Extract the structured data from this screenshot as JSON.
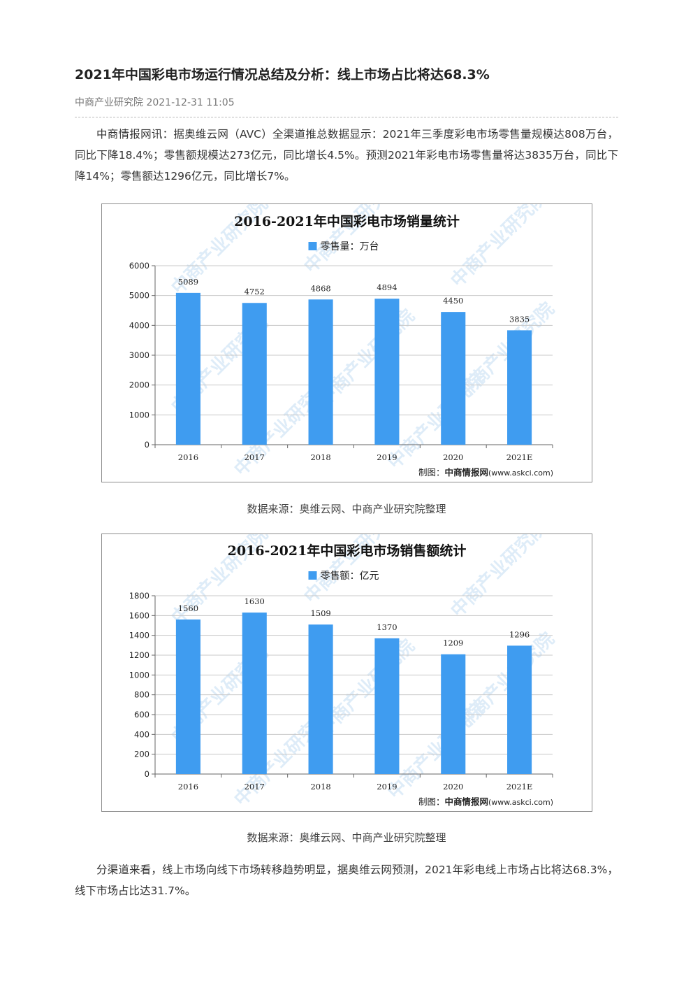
{
  "article": {
    "title": "2021年中国彩电市场运行情况总结及分析：线上市场占比将达68.3%",
    "source": "中商产业研究院",
    "datetime": "2021-12-31 11:05",
    "para1": "中商情报网讯：据奥维云网（AVC）全渠道推总数据显示：2021年三季度彩电市场零售量规模达808万台，同比下降18.4%；零售额规模达273亿元，同比增长4.5%。预测2021年彩电市场零售量将达3835万台，同比下降14%；零售额达1296亿元，同比增长7%。",
    "caption1": "数据来源：奥维云网、中商产业研究院整理",
    "caption2": "数据来源：奥维云网、中商产业研究院整理",
    "para2": "分渠道来看，线上市场向线下市场转移趋势明显，据奥维云网预测，2021年彩电线上市场占比将达68.3%，线下市场占比达31.7%。"
  },
  "watermark": "中商产业研究院",
  "chart_data": [
    {
      "type": "bar",
      "title": "2016-2021年中国彩电市场销量统计",
      "legend": "零售量：万台",
      "legend_position": "top-center",
      "credit_prefix": "制图：",
      "credit_brand": "中商情报网",
      "credit_url": "(www.askci.com)",
      "categories": [
        "2016",
        "2017",
        "2018",
        "2019",
        "2020",
        "2021E"
      ],
      "values": [
        5089,
        4752,
        4868,
        4894,
        4450,
        3835
      ],
      "ylim": [
        0,
        6000
      ],
      "yticks": [
        0,
        1000,
        2000,
        3000,
        4000,
        5000,
        6000
      ],
      "grid": true,
      "bar_color": "#3f9cf0"
    },
    {
      "type": "bar",
      "title": "2016-2021年中国彩电市场销售额统计",
      "legend": "零售额：亿元",
      "legend_position": "top-center",
      "credit_prefix": "制图：",
      "credit_brand": "中商情报网",
      "credit_url": "(www.askci.com)",
      "categories": [
        "2016",
        "2017",
        "2018",
        "2019",
        "2020",
        "2021E"
      ],
      "values": [
        1560,
        1630,
        1509,
        1370,
        1209,
        1296
      ],
      "ylim": [
        0,
        1800
      ],
      "yticks": [
        0,
        200,
        400,
        600,
        800,
        1000,
        1200,
        1400,
        1600,
        1800
      ],
      "grid": true,
      "bar_color": "#3f9cf0"
    }
  ]
}
